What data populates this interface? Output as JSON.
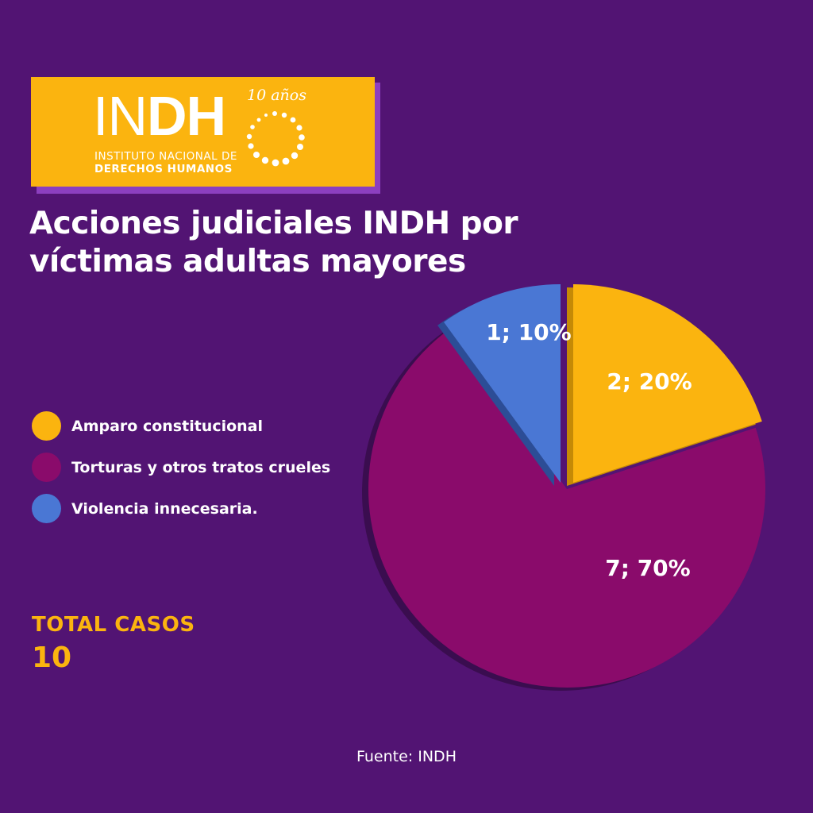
{
  "logo": {
    "name": "INDH",
    "badge": "10 años",
    "subtitle_line1": "INSTITUTO NACIONAL DE",
    "subtitle_line2": "DERECHOS HUMANOS"
  },
  "title": "Acciones judiciales INDH por víctimas adultas mayores",
  "total": {
    "label": "TOTAL  CASOS",
    "value": "10"
  },
  "source": "Fuente: INDH",
  "colors": {
    "background": "#521473",
    "amparo": "#fbb40f",
    "torturas": "#8a0b6b",
    "violencia": "#4a77d4"
  },
  "chart_data": {
    "type": "pie",
    "total": 10,
    "slices": [
      {
        "name": "Amparo constitucional",
        "value": 2,
        "percent": 20,
        "label": "2; 20%",
        "color": "#fbb40f"
      },
      {
        "name": "Torturas y otros tratos crueles",
        "value": 7,
        "percent": 70,
        "label": "7; 70%",
        "color": "#8a0b6b"
      },
      {
        "name": "Violencia innecesaria.",
        "value": 1,
        "percent": 10,
        "label": "1; 10%",
        "color": "#4a77d4"
      }
    ],
    "legend_position": "left"
  }
}
